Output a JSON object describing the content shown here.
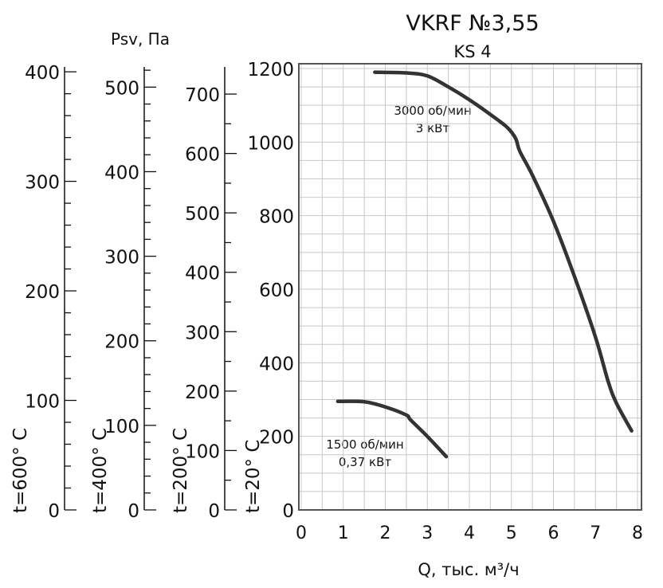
{
  "chart_data": {
    "type": "line",
    "title": "VKRF №3,55",
    "subtitle": "KS 4",
    "ylabel": "Psv, Па",
    "xlabel": "Q, тыс. м³/ч",
    "xlim": [
      0,
      8
    ],
    "ylim": [
      0,
      1200
    ],
    "x_ticks": [
      0,
      1,
      2,
      3,
      4,
      5,
      6,
      7,
      8
    ],
    "y_ticks": [
      0,
      200,
      400,
      600,
      800,
      1000,
      1200
    ],
    "grid": true,
    "grid_step_x": 0.5,
    "grid_step_y": 50,
    "main_axis_label": "t=20° C",
    "aux_axes": [
      {
        "label": "t=600° C",
        "max": 403,
        "ticks": [
          0,
          100,
          200,
          300,
          400
        ],
        "minor_step": 20
      },
      {
        "label": "t=400° C",
        "max": 522,
        "ticks": [
          0,
          100,
          200,
          300,
          400,
          500
        ],
        "minor_step": 20
      },
      {
        "label": "t=200° C",
        "max": 743,
        "ticks": [
          0,
          100,
          200,
          300,
          400,
          500,
          600,
          700
        ],
        "minor_step": 50
      }
    ],
    "series": [
      {
        "name": "3000 об/мин",
        "power": "3 кВт",
        "points": [
          [
            1.75,
            1190
          ],
          [
            2.5,
            1188
          ],
          [
            3.0,
            1180
          ],
          [
            3.5,
            1150
          ],
          [
            4.0,
            1115
          ],
          [
            4.5,
            1075
          ],
          [
            4.9,
            1040
          ],
          [
            5.1,
            1010
          ],
          [
            5.2,
            975
          ],
          [
            5.5,
            910
          ],
          [
            6.0,
            785
          ],
          [
            6.5,
            635
          ],
          [
            7.0,
            470
          ],
          [
            7.3,
            350
          ],
          [
            7.5,
            290
          ],
          [
            7.86,
            215
          ]
        ]
      },
      {
        "name": "1500 об/мин",
        "power": "0,37 кВт",
        "points": [
          [
            0.87,
            295
          ],
          [
            1.5,
            294
          ],
          [
            2.0,
            280
          ],
          [
            2.5,
            258
          ],
          [
            2.6,
            245
          ],
          [
            3.0,
            200
          ],
          [
            3.45,
            145
          ]
        ]
      }
    ],
    "line_color": "#333333",
    "grid_color": "#c8c8c8"
  }
}
